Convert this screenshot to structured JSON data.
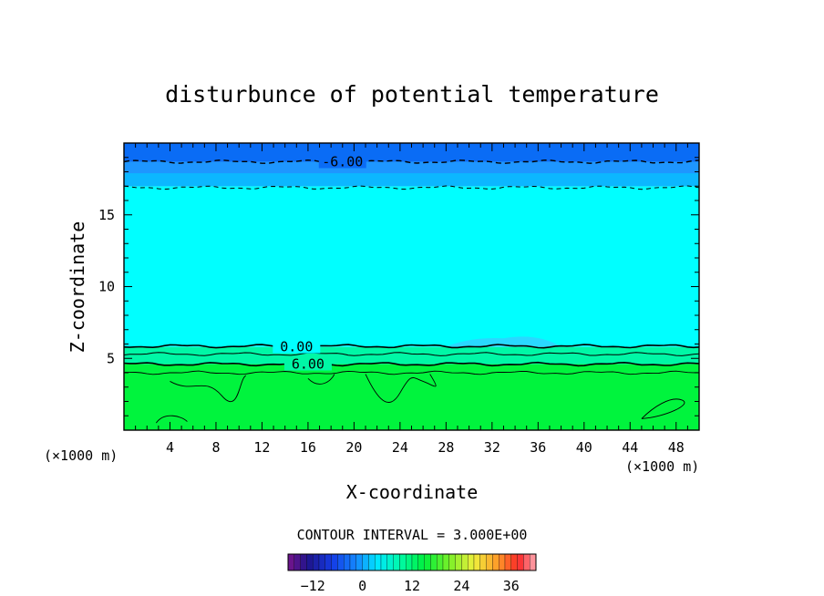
{
  "chart_data": {
    "type": "heatmap",
    "title": "disturbunce of potential temperature",
    "xlabel": "X-coordinate",
    "ylabel": "Z-coordinate",
    "x_unit_left": "(×1000 m)",
    "x_unit_right": "(×1000 m)",
    "xlim": [
      0,
      50
    ],
    "ylim": [
      0,
      20
    ],
    "xticks": [
      4,
      8,
      12,
      16,
      20,
      24,
      28,
      32,
      36,
      40,
      44,
      48
    ],
    "yticks": [
      5,
      10,
      15
    ],
    "contour_interval_text": "CONTOUR INTERVAL = 3.000E+00",
    "contour_labels": [
      {
        "text": "-6.00",
        "x": 19,
        "z": 18.7
      },
      {
        "text": "0.00",
        "x": 15,
        "z": 5.8
      },
      {
        "text": "6.00",
        "x": 16,
        "z": 4.6
      }
    ],
    "colorbar": {
      "range": [
        -18,
        42
      ],
      "ticks": [
        -12,
        0,
        12,
        24,
        36
      ],
      "tick_labels": [
        "−12",
        "0",
        "12",
        "24",
        "36"
      ]
    },
    "grid": false,
    "legend": "bottom",
    "colors": {
      "cold": "#0a6cf5",
      "cool": "#1e96ff",
      "neutral": "#00ffff",
      "warm": "#00f43d"
    }
  }
}
